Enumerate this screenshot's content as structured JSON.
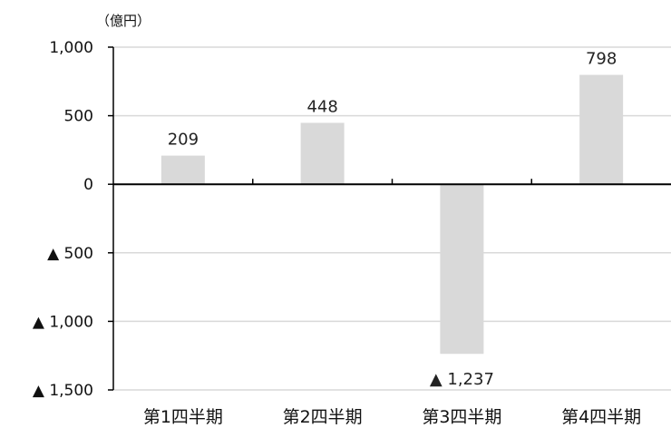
{
  "chart_data": {
    "type": "bar",
    "title": "",
    "unit_label": "（億円）",
    "xlabel": "",
    "ylabel": "",
    "categories": [
      "第1四半期",
      "第2四半期",
      "第3四半期",
      "第4四半期"
    ],
    "values": [
      209,
      448,
      -1237,
      798
    ],
    "data_labels": [
      "209",
      "448",
      "▲ 1,237",
      "798"
    ],
    "ylim": [
      -1500,
      1000
    ],
    "yticks": [
      1000,
      500,
      0,
      -500,
      -1000,
      -1500
    ],
    "ytick_labels": [
      "1,000",
      "500",
      "0",
      "▲ 500",
      "▲ 1,000",
      "▲ 1,500"
    ],
    "grid": true,
    "legend": "none",
    "colors": {
      "bar": "#d9d9d9",
      "gridline": "#d9d9d9",
      "axis": "#000000",
      "text": "#111111"
    }
  }
}
